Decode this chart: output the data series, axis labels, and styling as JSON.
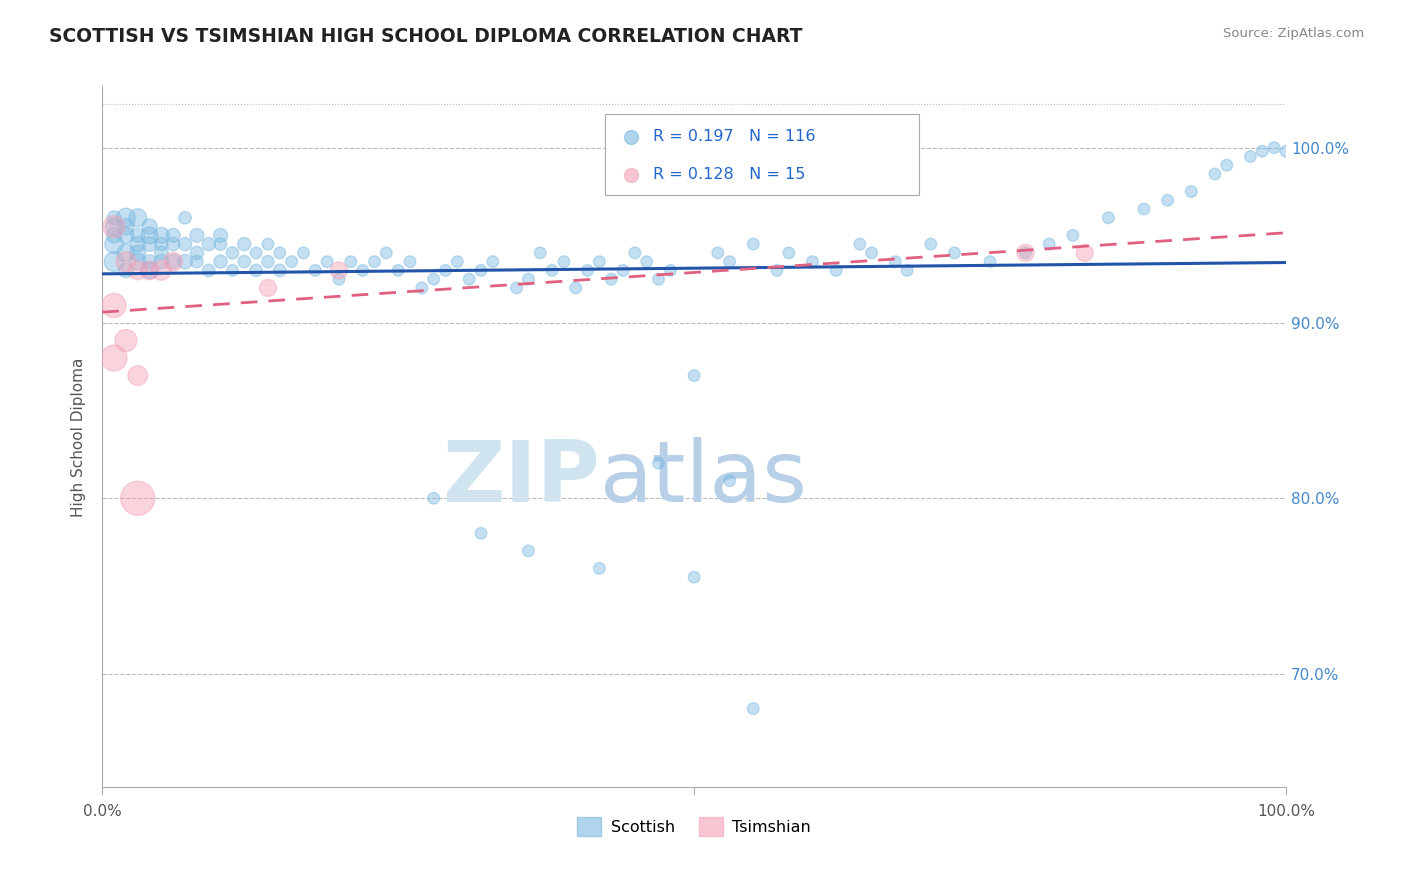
{
  "title": "SCOTTISH VS TSIMSHIAN HIGH SCHOOL DIPLOMA CORRELATION CHART",
  "source": "Source: ZipAtlas.com",
  "ylabel": "High School Diploma",
  "xlim": [
    0.0,
    1.0
  ],
  "ylim": [
    0.635,
    1.035
  ],
  "yticks": [
    0.7,
    0.8,
    0.9,
    1.0
  ],
  "ytick_labels": [
    "70.0%",
    "80.0%",
    "90.0%",
    "100.0%"
  ],
  "legend_R_scottish": "0.197",
  "legend_N_scottish": "116",
  "legend_R_tsimshian": "0.128",
  "legend_N_tsimshian": "15",
  "scottish_color": "#7ab8e0",
  "tsimshian_color": "#f4a0b5",
  "line_scottish_color": "#2255aa",
  "line_tsimshian_color": "#e06080",
  "watermark_zip": "ZIP",
  "watermark_atlas": "atlas",
  "watermark_color": "#d0e4f0",
  "scottish_x": [
    0.01,
    0.01,
    0.01,
    0.01,
    0.01,
    0.02,
    0.02,
    0.02,
    0.02,
    0.02,
    0.03,
    0.03,
    0.03,
    0.03,
    0.03,
    0.04,
    0.04,
    0.04,
    0.04,
    0.04,
    0.05,
    0.05,
    0.05,
    0.05,
    0.06,
    0.06,
    0.06,
    0.07,
    0.07,
    0.07,
    0.08,
    0.08,
    0.08,
    0.09,
    0.09,
    0.1,
    0.1,
    0.1,
    0.11,
    0.11,
    0.12,
    0.12,
    0.13,
    0.13,
    0.14,
    0.14,
    0.15,
    0.15,
    0.16,
    0.17,
    0.18,
    0.19,
    0.2,
    0.21,
    0.22,
    0.23,
    0.24,
    0.25,
    0.26,
    0.27,
    0.28,
    0.29,
    0.3,
    0.31,
    0.32,
    0.33,
    0.35,
    0.36,
    0.37,
    0.38,
    0.39,
    0.4,
    0.41,
    0.42,
    0.43,
    0.44,
    0.45,
    0.46,
    0.47,
    0.48,
    0.5,
    0.52,
    0.53,
    0.55,
    0.57,
    0.58,
    0.6,
    0.62,
    0.64,
    0.65,
    0.67,
    0.68,
    0.7,
    0.72,
    0.75,
    0.78,
    0.8,
    0.82,
    0.85,
    0.88,
    0.9,
    0.92,
    0.94,
    0.95,
    0.97,
    0.98,
    0.99,
    1.0,
    0.47,
    0.53,
    0.28,
    0.32,
    0.36,
    0.42,
    0.5,
    0.55
  ],
  "scottish_y": [
    0.955,
    0.96,
    0.945,
    0.95,
    0.935,
    0.95,
    0.94,
    0.955,
    0.93,
    0.96,
    0.945,
    0.935,
    0.95,
    0.96,
    0.94,
    0.945,
    0.93,
    0.955,
    0.935,
    0.95,
    0.945,
    0.935,
    0.95,
    0.94,
    0.945,
    0.935,
    0.95,
    0.945,
    0.935,
    0.96,
    0.94,
    0.95,
    0.935,
    0.945,
    0.93,
    0.945,
    0.935,
    0.95,
    0.94,
    0.93,
    0.935,
    0.945,
    0.94,
    0.93,
    0.945,
    0.935,
    0.94,
    0.93,
    0.935,
    0.94,
    0.93,
    0.935,
    0.925,
    0.935,
    0.93,
    0.935,
    0.94,
    0.93,
    0.935,
    0.92,
    0.925,
    0.93,
    0.935,
    0.925,
    0.93,
    0.935,
    0.92,
    0.925,
    0.94,
    0.93,
    0.935,
    0.92,
    0.93,
    0.935,
    0.925,
    0.93,
    0.94,
    0.935,
    0.925,
    0.93,
    0.87,
    0.94,
    0.935,
    0.945,
    0.93,
    0.94,
    0.935,
    0.93,
    0.945,
    0.94,
    0.935,
    0.93,
    0.945,
    0.94,
    0.935,
    0.94,
    0.945,
    0.95,
    0.96,
    0.965,
    0.97,
    0.975,
    0.985,
    0.99,
    0.995,
    0.998,
    1.0,
    0.998,
    0.82,
    0.81,
    0.8,
    0.78,
    0.77,
    0.76,
    0.755,
    0.68
  ],
  "scottish_sizes": [
    150,
    100,
    180,
    120,
    200,
    130,
    160,
    140,
    110,
    190,
    120,
    150,
    100,
    170,
    130,
    110,
    140,
    120,
    100,
    150,
    90,
    110,
    130,
    100,
    90,
    110,
    100,
    90,
    110,
    80,
    90,
    100,
    80,
    90,
    80,
    80,
    90,
    100,
    80,
    70,
    80,
    90,
    70,
    80,
    70,
    80,
    70,
    80,
    70,
    70,
    70,
    70,
    70,
    70,
    70,
    70,
    70,
    70,
    70,
    70,
    70,
    70,
    70,
    70,
    70,
    70,
    70,
    70,
    70,
    70,
    70,
    70,
    70,
    70,
    70,
    70,
    70,
    70,
    70,
    70,
    70,
    70,
    70,
    70,
    70,
    70,
    70,
    70,
    70,
    70,
    70,
    70,
    70,
    70,
    70,
    70,
    70,
    70,
    70,
    70,
    70,
    70,
    70,
    70,
    70,
    70,
    70,
    70,
    70,
    70,
    70,
    70,
    70,
    70,
    70,
    70
  ],
  "tsimshian_x": [
    0.01,
    0.01,
    0.01,
    0.02,
    0.02,
    0.03,
    0.03,
    0.04,
    0.05,
    0.06,
    0.14,
    0.2,
    0.78,
    0.83,
    0.03
  ],
  "tsimshian_y": [
    0.955,
    0.91,
    0.88,
    0.935,
    0.89,
    0.93,
    0.87,
    0.93,
    0.93,
    0.935,
    0.92,
    0.93,
    0.94,
    0.94,
    0.8
  ],
  "tsimshian_sizes": [
    250,
    300,
    350,
    200,
    250,
    180,
    200,
    180,
    200,
    180,
    150,
    150,
    150,
    150,
    600
  ]
}
